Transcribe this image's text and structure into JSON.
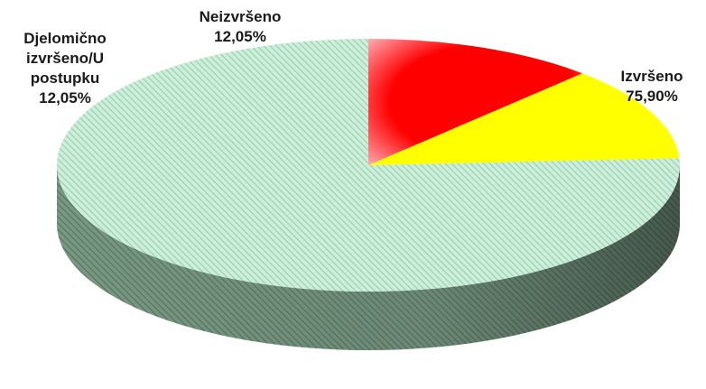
{
  "chart_data": {
    "type": "pie",
    "title": "",
    "categories": [
      "Izvršeno",
      "Djelomično izvršeno/U postupku",
      "Neizvršeno"
    ],
    "values": [
      75.9,
      12.05,
      12.05
    ],
    "labels": [
      {
        "lines": [
          "Izvršeno",
          "75,90%"
        ]
      },
      {
        "lines": [
          "Djelomično",
          "izvršeno/U",
          "postupku",
          "12,05%"
        ]
      },
      {
        "lines": [
          "Neizvršeno",
          "12,05%"
        ]
      }
    ],
    "colors": [
      "#b9e6cc",
      "#ffff00",
      "#ff0000"
    ],
    "style": "3d-tilted",
    "legend": "none"
  }
}
